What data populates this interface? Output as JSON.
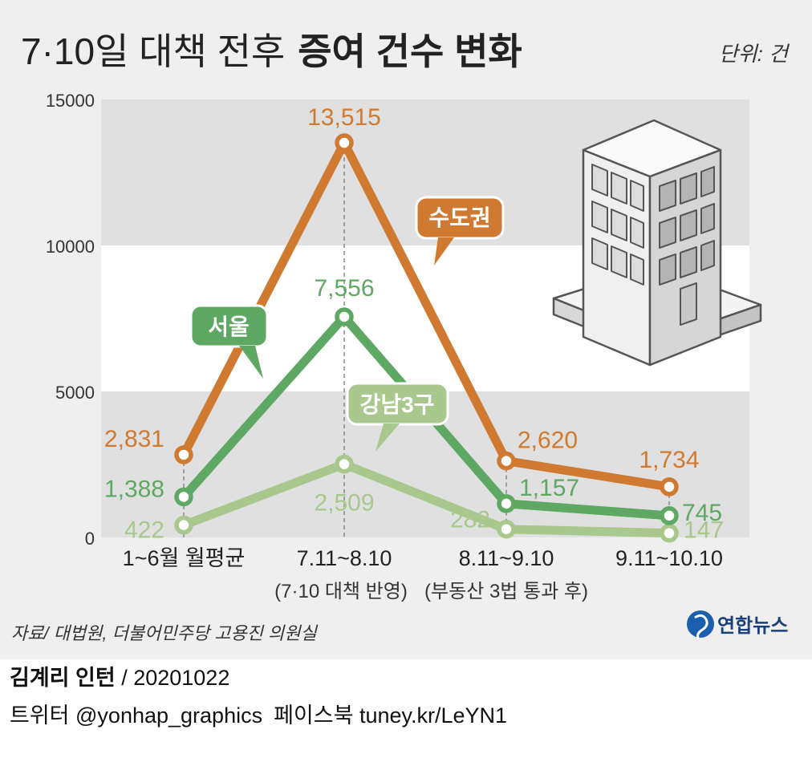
{
  "header": {
    "title_light": "7·10일 대책 전후",
    "title_bold": "증여 건수 변화",
    "unit": "단위: 건"
  },
  "footer": {
    "source": "자료/ 대법원, 더불어민주당 고용진 의원실",
    "logo_text": "연합뉴스",
    "author": "김계리 인턴",
    "date": " / 20201022",
    "twitter": "트위터 @yonhap_graphics",
    "facebook": "페이스북 tuney.kr/LeYN1"
  },
  "colors": {
    "metro": "#cf7a30",
    "seoul": "#5ea864",
    "gangnam": "#a8c88e",
    "band": "#e0e0e0",
    "panel": "#efefef"
  },
  "chart_data": {
    "type": "line",
    "title": "7·10일 대책 전후 증여 건수 변화",
    "xlabel": "",
    "ylabel": "",
    "ylim": [
      0,
      15000
    ],
    "yticks": [
      "0",
      "5000",
      "10000",
      "15000"
    ],
    "categories": [
      "1~6월 월평균",
      "7.11~8.10",
      "8.11~9.10",
      "9.11~10.10"
    ],
    "category_notes": [
      "",
      "(7·10 대책 반영)",
      "(부동산 3법 통과 후)",
      ""
    ],
    "series": [
      {
        "name": "수도권",
        "color": "#cf7a30",
        "values": [
          2831,
          13515,
          2620,
          1734
        ],
        "labels": [
          "2,831",
          "13,515",
          "2,620",
          "1,734"
        ]
      },
      {
        "name": "서울",
        "color": "#5ea864",
        "values": [
          1388,
          7556,
          1157,
          745
        ],
        "labels": [
          "1,388",
          "7,556",
          "1,157",
          "745"
        ]
      },
      {
        "name": "강남3구",
        "color": "#a8c88e",
        "values": [
          422,
          2509,
          282,
          147
        ],
        "labels": [
          "422",
          "2,509",
          "282",
          "147"
        ]
      }
    ]
  }
}
